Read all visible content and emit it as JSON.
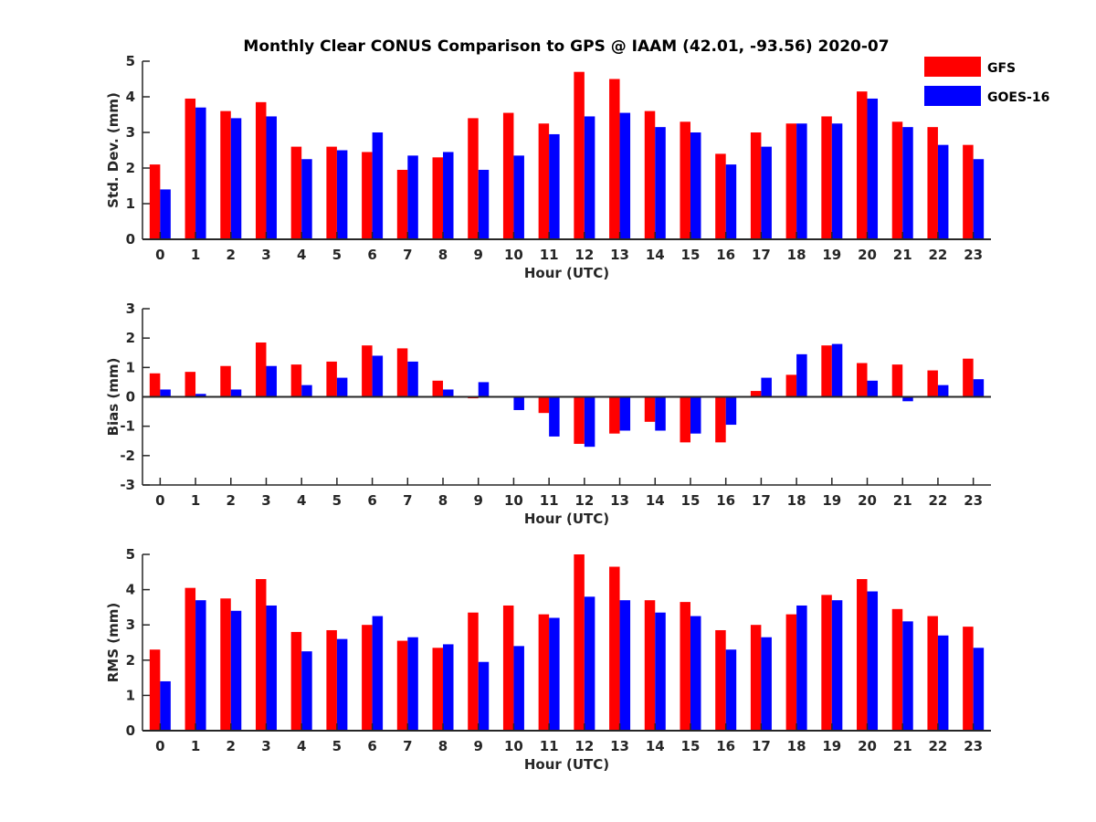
{
  "chart_data": {
    "type": "bar",
    "title": "Monthly Clear CONUS Comparison to GPS @ IAAM (42.01, -93.56) 2020-07",
    "legend": {
      "placement": "top-right",
      "entries": [
        "GFS",
        "GOES-16"
      ]
    },
    "colors": {
      "GFS": "#ff0000",
      "GOES-16": "#0000ff"
    },
    "categories": [
      "0",
      "1",
      "2",
      "3",
      "4",
      "5",
      "6",
      "7",
      "8",
      "9",
      "10",
      "11",
      "12",
      "13",
      "14",
      "15",
      "16",
      "17",
      "18",
      "19",
      "20",
      "21",
      "22",
      "23"
    ],
    "panels": [
      {
        "xlabel": "Hour (UTC)",
        "ylabel": "Std. Dev. (mm)",
        "ylim": [
          0,
          5
        ],
        "yticks": [
          0,
          1,
          2,
          3,
          4,
          5
        ],
        "series": [
          {
            "name": "GFS",
            "values": [
              2.1,
              3.95,
              3.6,
              3.85,
              2.6,
              2.6,
              2.45,
              1.95,
              2.3,
              3.4,
              3.55,
              3.25,
              4.7,
              4.5,
              3.6,
              3.3,
              2.4,
              3.0,
              3.25,
              3.45,
              4.15,
              3.3,
              3.15,
              2.65
            ]
          },
          {
            "name": "GOES-16",
            "values": [
              1.4,
              3.7,
              3.4,
              3.45,
              2.25,
              2.5,
              3.0,
              2.35,
              2.45,
              1.95,
              2.35,
              2.95,
              3.45,
              3.55,
              3.15,
              3.0,
              2.1,
              2.6,
              3.25,
              3.25,
              3.95,
              3.15,
              2.65,
              2.25
            ]
          }
        ]
      },
      {
        "xlabel": "Hour (UTC)",
        "ylabel": "Bias (mm)",
        "ylim": [
          -3,
          3
        ],
        "yticks": [
          -3,
          -2,
          -1,
          0,
          1,
          2,
          3
        ],
        "series": [
          {
            "name": "GFS",
            "values": [
              0.8,
              0.85,
              1.05,
              1.85,
              1.1,
              1.2,
              1.75,
              1.65,
              0.55,
              -0.05,
              0.0,
              -0.55,
              -1.6,
              -1.25,
              -0.85,
              -1.55,
              -1.55,
              0.2,
              0.75,
              1.75,
              1.15,
              1.1,
              0.9,
              1.3
            ]
          },
          {
            "name": "GOES-16",
            "values": [
              0.25,
              0.1,
              0.25,
              1.05,
              0.4,
              0.65,
              1.4,
              1.2,
              0.25,
              0.5,
              -0.45,
              -1.35,
              -1.7,
              -1.15,
              -1.15,
              -1.25,
              -0.95,
              0.65,
              1.45,
              1.8,
              0.55,
              -0.15,
              0.4,
              0.6
            ]
          }
        ]
      },
      {
        "xlabel": "Hour (UTC)",
        "ylabel": "RMS (mm)",
        "ylim": [
          0,
          5
        ],
        "yticks": [
          0,
          1,
          2,
          3,
          4,
          5
        ],
        "series": [
          {
            "name": "GFS",
            "values": [
              2.3,
              4.05,
              3.75,
              4.3,
              2.8,
              2.85,
              3.0,
              2.55,
              2.35,
              3.35,
              3.55,
              3.3,
              5.0,
              4.65,
              3.7,
              3.65,
              2.85,
              3.0,
              3.3,
              3.85,
              4.3,
              3.45,
              3.25,
              2.95
            ]
          },
          {
            "name": "GOES-16",
            "values": [
              1.4,
              3.7,
              3.4,
              3.55,
              2.25,
              2.6,
              3.25,
              2.65,
              2.45,
              1.95,
              2.4,
              3.2,
              3.8,
              3.7,
              3.35,
              3.25,
              2.3,
              2.65,
              3.55,
              3.7,
              3.95,
              3.1,
              2.7,
              2.35
            ]
          }
        ]
      }
    ]
  }
}
